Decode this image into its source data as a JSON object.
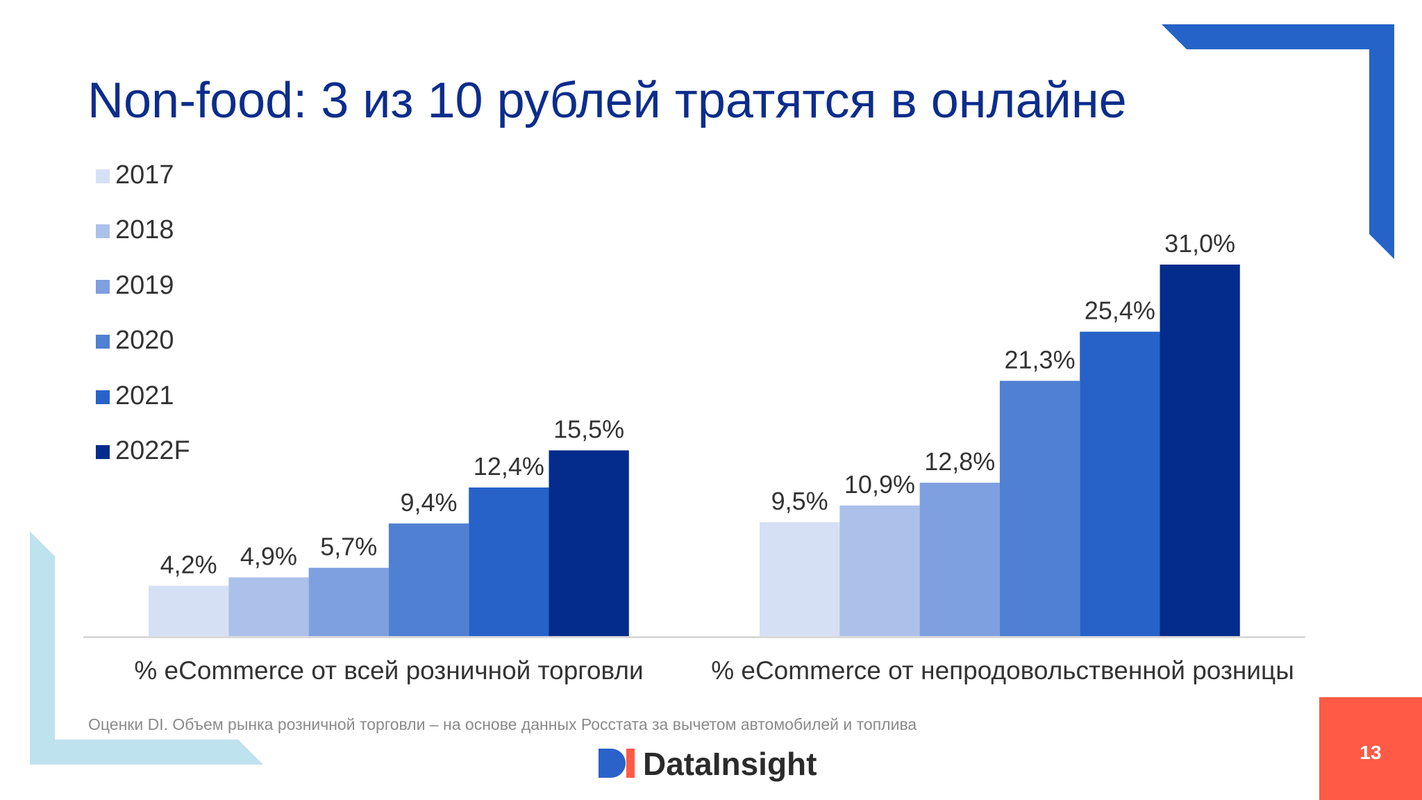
{
  "slide": {
    "title": "Non-food: 3 из 10 рублей тратятся в онлайне",
    "footnote": "Оценки DI. Объем рынка розничной торговли – на основе данных Росстата за вычетом автомобилей и топлива",
    "logo_text": "DataInsight",
    "page_number": "13"
  },
  "chart_data": {
    "type": "bar",
    "categories": [
      "% eCommerce от всей розничной торговли",
      "% eCommerce от непродовольственной розницы"
    ],
    "series": [
      {
        "name": "2017",
        "color": "#d6e0f5",
        "values": [
          4.2,
          9.5
        ],
        "labels": [
          "4,2%",
          "9,5%"
        ]
      },
      {
        "name": "2018",
        "color": "#abc1ea",
        "values": [
          4.9,
          10.9
        ],
        "labels": [
          "4,9%",
          "10,9%"
        ]
      },
      {
        "name": "2019",
        "color": "#7e9fe0",
        "values": [
          5.7,
          12.8
        ],
        "labels": [
          "5,7%",
          "12,8%"
        ]
      },
      {
        "name": "2020",
        "color": "#5080d2",
        "values": [
          9.4,
          21.3
        ],
        "labels": [
          "9,4%",
          "21,3%"
        ]
      },
      {
        "name": "2021",
        "color": "#2762c9",
        "values": [
          12.4,
          25.4
        ],
        "labels": [
          "12,4%",
          "25,4%"
        ]
      },
      {
        "name": "2022F",
        "color": "#032c8c",
        "values": [
          15.5,
          31.0
        ],
        "labels": [
          "15,5%",
          "31,0%"
        ]
      }
    ],
    "ylim": [
      0,
      31.0
    ],
    "grid": false,
    "legend_position": "left"
  },
  "colors": {
    "title": "#0c2d8c",
    "accent_dark_blue": "#2563c9",
    "accent_light_blue": "#bfe2ef",
    "page_badge": "#fe5a46",
    "axis": "#d9d9d9"
  }
}
